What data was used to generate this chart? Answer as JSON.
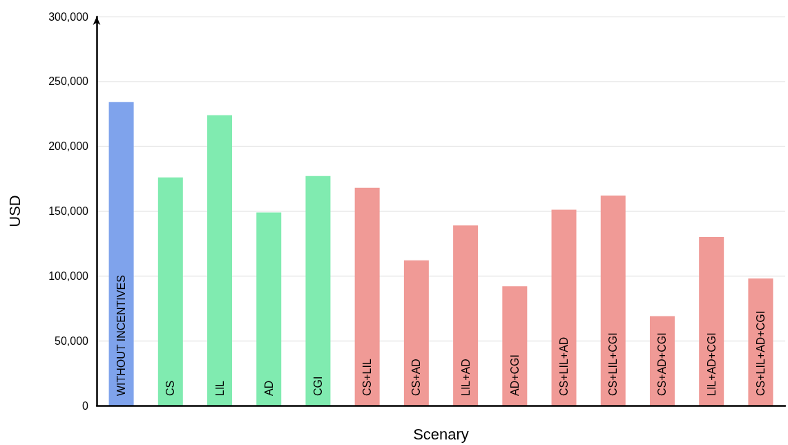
{
  "chart_data": {
    "type": "bar",
    "xlabel": "Scenary",
    "ylabel": "USD",
    "categories": [
      "WITHOUT INCENTIVES",
      "CS",
      "LIL",
      "AD",
      "CGI",
      "CS+LIL",
      "CS+AD",
      "LIL+AD",
      "AD+CGI",
      "CS+LIL+AD",
      "CS+LIL+CGI",
      "CS+AD+CGI",
      "LIL+AD+CGI",
      "CS+LIL+AD+CGI"
    ],
    "values": [
      234000,
      176000,
      224000,
      149000,
      177000,
      168000,
      112000,
      139000,
      92000,
      151000,
      162000,
      69000,
      130000,
      98000
    ],
    "colors": [
      "#7fa3ec",
      "#80ebb0",
      "#80ebb0",
      "#80ebb0",
      "#80ebb0",
      "#f09a96",
      "#f09a96",
      "#f09a96",
      "#f09a96",
      "#f09a96",
      "#f09a96",
      "#f09a96",
      "#f09a96",
      "#f09a96"
    ],
    "ylim": [
      0,
      300000
    ],
    "yticks": [
      0,
      {
        "value": 50000,
        "label": "50,000"
      },
      {
        "value": 100000,
        "label": "100,000"
      },
      {
        "value": 150000,
        "label": "150,000"
      },
      {
        "value": 200000,
        "label": "200,000"
      },
      {
        "value": 250000,
        "label": "250,000"
      },
      {
        "value": 300000,
        "label": "300,000"
      }
    ],
    "grid": "y"
  }
}
